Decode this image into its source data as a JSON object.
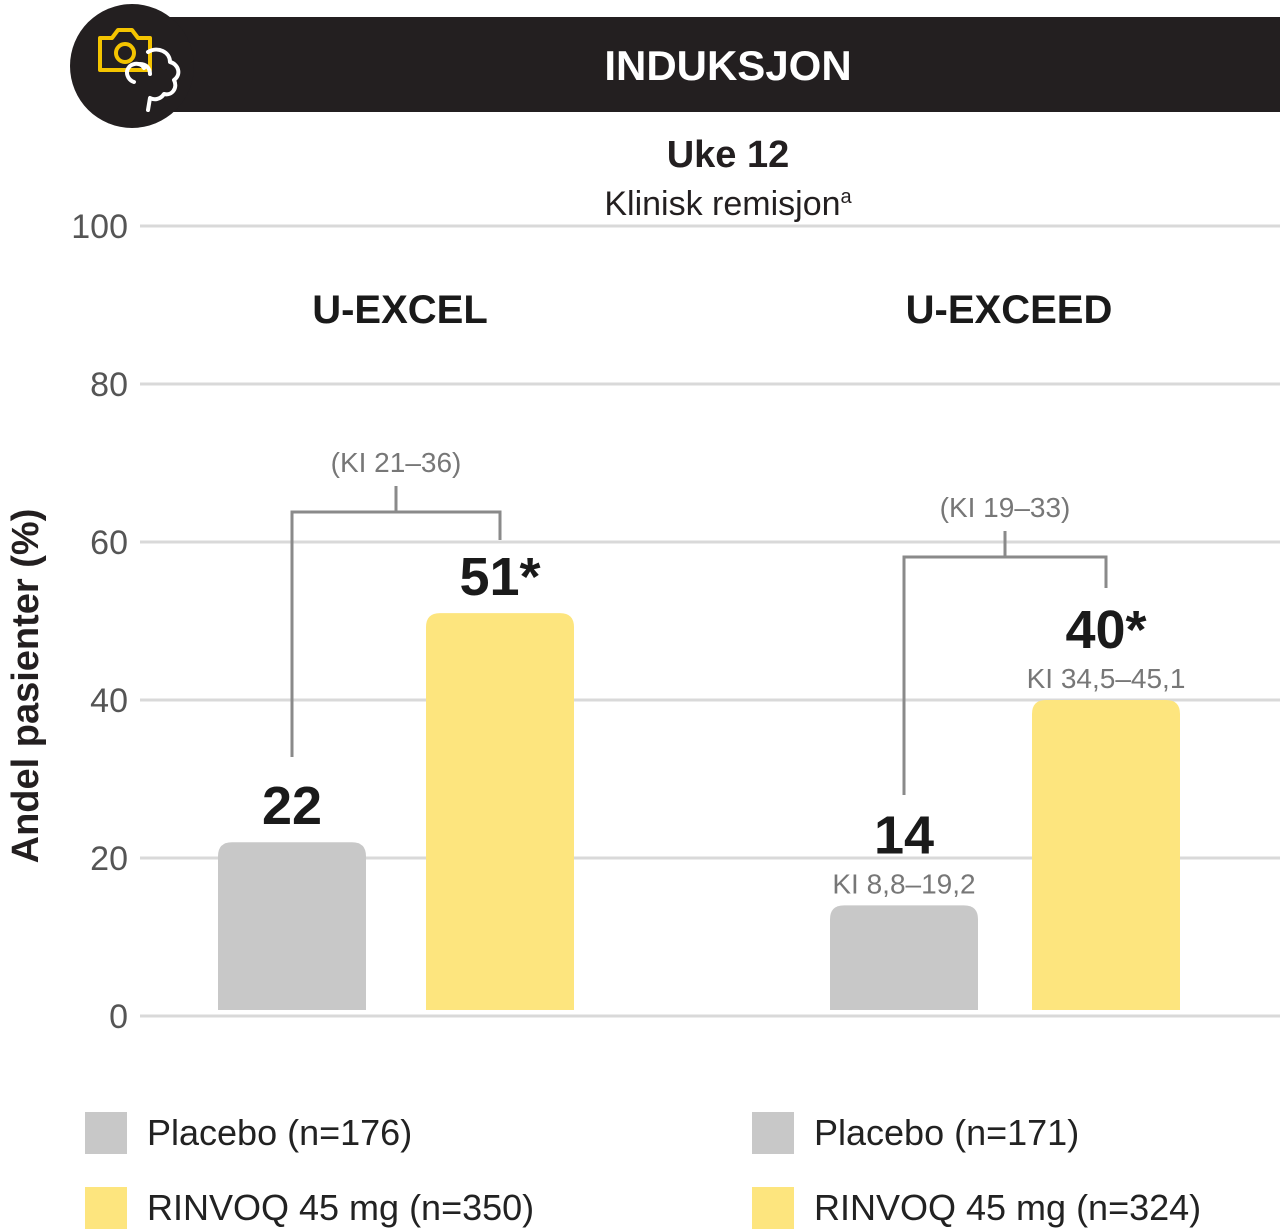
{
  "header": {
    "label": "INDUKSJON",
    "icon": "camera-intestine-icon",
    "bg_color": "#231f20",
    "icon_color_camera": "#f4c400",
    "icon_color_intestine": "#ffffff"
  },
  "chart_data": {
    "type": "bar",
    "title": "Uke 12",
    "subtitle": "Klinisk remisjon",
    "subtitle_sup": "a",
    "ylabel": "Andel pasienter  (%)",
    "ylim": [
      0,
      100
    ],
    "yticks": [
      "0",
      "20",
      "40",
      "60",
      "80",
      "100"
    ],
    "grid": true,
    "colors": {
      "placebo": "#c8c8c8",
      "rinvoq": "#fde57e"
    },
    "groups": [
      {
        "name": "U-EXCEL",
        "bars": [
          {
            "series": "placebo",
            "value": 22,
            "label": "22",
            "ci": ""
          },
          {
            "series": "rinvoq",
            "value": 51,
            "label": "51*",
            "ci": ""
          }
        ],
        "bracket_label": "(KI 21–36)"
      },
      {
        "name": "U-EXCEED",
        "bars": [
          {
            "series": "placebo",
            "value": 14,
            "label": "14",
            "ci": "KI 8,8–19,2"
          },
          {
            "series": "rinvoq",
            "value": 40,
            "label": "40*",
            "ci": "KI 34,5–45,1"
          }
        ],
        "bracket_label": "(KI 19–33)"
      }
    ]
  },
  "legend": {
    "left": [
      {
        "series": "placebo",
        "label": "Placebo (n=176)"
      },
      {
        "series": "rinvoq",
        "label": "RINVOQ 45 mg (n=350)"
      }
    ],
    "right": [
      {
        "series": "placebo",
        "label": "Placebo (n=171)"
      },
      {
        "series": "rinvoq",
        "label": "RINVOQ 45 mg (n=324)"
      }
    ]
  }
}
